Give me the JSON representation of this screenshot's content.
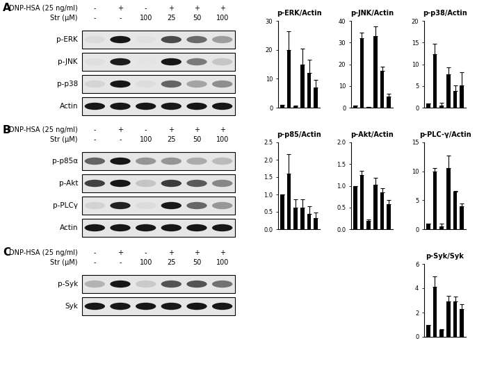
{
  "blots": [
    {
      "panel": "A",
      "conditions": [
        {
          "label": "DNP-HSA (25 ng/ml)",
          "lanes": [
            "-",
            "+",
            "-",
            "+",
            "+",
            "+"
          ]
        },
        {
          "label": "Str (μM)",
          "lanes": [
            "-",
            "-",
            "100",
            "25",
            "50",
            "100"
          ]
        }
      ],
      "rows": [
        "p-ERK",
        "p-JNK",
        "p-p38",
        "Actin"
      ]
    },
    {
      "panel": "B",
      "conditions": [
        {
          "label": "DNP-HSA (25 ng/ml)",
          "lanes": [
            "-",
            "+",
            "-",
            "+",
            "+",
            "+"
          ]
        },
        {
          "label": "Str (μM)",
          "lanes": [
            "-",
            "-",
            "100",
            "25",
            "50",
            "100"
          ]
        }
      ],
      "rows": [
        "p-p85α",
        "p-Akt",
        "p-PLCγ",
        "Actin"
      ]
    },
    {
      "panel": "C",
      "conditions": [
        {
          "label": "DNP-HSA (25 ng/ml)",
          "lanes": [
            "-",
            "+",
            "-",
            "+",
            "+",
            "+"
          ]
        },
        {
          "label": "Str (μM)",
          "lanes": [
            "-",
            "-",
            "100",
            "25",
            "50",
            "100"
          ]
        }
      ],
      "rows": [
        "p-Syk",
        "Syk"
      ]
    }
  ],
  "chart_data": [
    {
      "type": "bar",
      "title": "p-ERK/Actin",
      "categories": [
        null,
        null,
        null,
        null,
        null,
        null
      ],
      "values": [
        1,
        20,
        0.5,
        15,
        12,
        7
      ],
      "errors": [
        0,
        6.5,
        0.2,
        5.5,
        4.5,
        2.5
      ],
      "color": "#000000",
      "ylim": [
        0,
        30
      ],
      "yticks": [
        0,
        10,
        20,
        30
      ],
      "tick_labels": "y"
    },
    {
      "type": "bar",
      "title": "p-JNK/Actin",
      "categories": [
        null,
        null,
        null,
        null,
        null,
        null
      ],
      "values": [
        1,
        32,
        0.3,
        33,
        17,
        5
      ],
      "errors": [
        0,
        2.5,
        0,
        4.5,
        2,
        1.5
      ],
      "color": "#000000",
      "ylim": [
        0,
        40
      ],
      "yticks": [
        0,
        10,
        20,
        30,
        40
      ],
      "tick_labels": "y"
    },
    {
      "type": "bar",
      "title": "p-p38/Actin",
      "categories": [
        null,
        null,
        null,
        null,
        null,
        null
      ],
      "values": [
        1,
        12.3,
        0.5,
        7.7,
        3.9,
        5.2
      ],
      "errors": [
        0,
        2.5,
        0.6,
        1.6,
        1.2,
        3
      ],
      "color": "#000000",
      "ylim": [
        0,
        20
      ],
      "yticks": [
        0,
        5,
        10,
        15,
        20
      ],
      "tick_labels": "y"
    },
    {
      "type": "bar",
      "title": "p-p85/Actin",
      "categories": [
        null,
        null,
        null,
        null,
        null,
        null
      ],
      "values": [
        1,
        1.6,
        0.62,
        0.62,
        0.45,
        0.33
      ],
      "errors": [
        0,
        0.55,
        0.25,
        0.25,
        0.22,
        0.15
      ],
      "color": "#000000",
      "ylim": [
        0,
        2.5
      ],
      "yticks": [
        {
          "value": 0,
          "label": "0.0"
        },
        0.5,
        {
          "value": 1,
          "label": "1.0"
        },
        1.5,
        {
          "value": 2,
          "label": "2.0"
        },
        2.5
      ],
      "tick_labels": "y"
    },
    {
      "type": "bar",
      "title": "p-Akt/Actin",
      "categories": [
        null,
        null,
        null,
        null,
        null,
        null
      ],
      "values": [
        1,
        1.25,
        0.2,
        1.03,
        0.85,
        0.57
      ],
      "errors": [
        0,
        0.1,
        0.02,
        0.15,
        0.1,
        0.1
      ],
      "color": "#000000",
      "ylim": [
        0,
        2
      ],
      "yticks": [
        {
          "value": 0,
          "label": "0.0"
        },
        0.5,
        {
          "value": 1,
          "label": "1.0"
        },
        1.5,
        {
          "value": 2,
          "label": "2.0"
        }
      ],
      "tick_labels": "y"
    },
    {
      "type": "bar",
      "title": "p-PLC-γ/Actin",
      "categories": [
        null,
        null,
        null,
        null,
        null,
        null
      ],
      "values": [
        1,
        10,
        0.5,
        10.5,
        6.5,
        4
      ],
      "errors": [
        0,
        0.6,
        0.5,
        2.2,
        0.1,
        0.4
      ],
      "color": "#000000",
      "ylim": [
        0,
        15
      ],
      "yticks": [
        0,
        5,
        10,
        15
      ],
      "tick_labels": "y"
    },
    {
      "type": "bar",
      "title": "p-Syk/Syk",
      "categories": [
        null,
        null,
        null,
        null,
        null,
        null
      ],
      "values": [
        1,
        4.1,
        0.55,
        2.9,
        2.9,
        2.3
      ],
      "errors": [
        0,
        0.9,
        0.1,
        0.5,
        0.4,
        0.4
      ],
      "color": "#000000",
      "ylim": [
        0,
        6
      ],
      "yticks": [
        0,
        2,
        4,
        6
      ],
      "tick_labels": "y"
    }
  ]
}
